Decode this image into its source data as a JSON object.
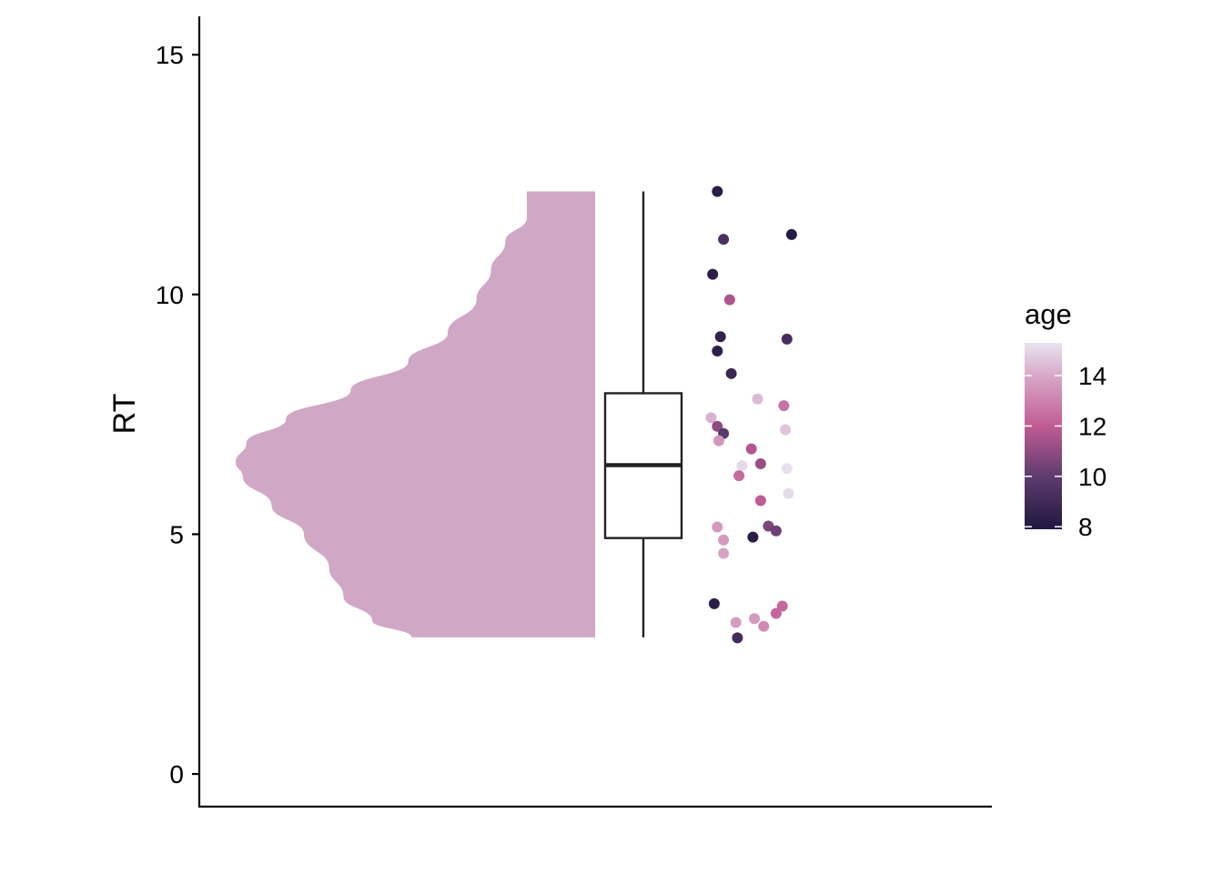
{
  "chart_data": {
    "type": "raincloud",
    "title": "",
    "xlabel": "",
    "ylabel": "RT",
    "ylim": [
      -0.7,
      15.8
    ],
    "yticks": [
      0,
      5,
      10,
      15
    ],
    "ytick_labels": [
      "0",
      "5",
      "10",
      "15"
    ],
    "grid": false,
    "violin_color": "#d0a8c5",
    "density": {
      "y": [
        2.85,
        3.2,
        3.7,
        4.3,
        5.0,
        5.6,
        6.2,
        6.5,
        6.9,
        7.4,
        8.0,
        8.6,
        9.2,
        9.9,
        10.5,
        11.1,
        11.6,
        12.15
      ],
      "width": [
        0.51,
        0.62,
        0.7,
        0.74,
        0.81,
        0.9,
        0.98,
        1.0,
        0.97,
        0.86,
        0.68,
        0.52,
        0.41,
        0.33,
        0.29,
        0.25,
        0.19,
        0.19
      ]
    },
    "boxplot": {
      "min": 2.85,
      "q1": 4.92,
      "median": 6.44,
      "q3": 7.94,
      "max": 12.15
    },
    "points": [
      {
        "jitter": 0.19,
        "rt": 12.15,
        "age": 8.2
      },
      {
        "jitter": 0.23,
        "rt": 11.15,
        "age": 9.3
      },
      {
        "jitter": 0.67,
        "rt": 11.25,
        "age": 8.1
      },
      {
        "jitter": 0.16,
        "rt": 10.42,
        "age": 8.3
      },
      {
        "jitter": 0.27,
        "rt": 9.89,
        "age": 11.6
      },
      {
        "jitter": 0.21,
        "rt": 9.12,
        "age": 8.5
      },
      {
        "jitter": 0.64,
        "rt": 9.07,
        "age": 9.2
      },
      {
        "jitter": 0.19,
        "rt": 8.82,
        "age": 8.4
      },
      {
        "jitter": 0.28,
        "rt": 8.35,
        "age": 8.8
      },
      {
        "jitter": 0.45,
        "rt": 7.82,
        "age": 14.4
      },
      {
        "jitter": 0.62,
        "rt": 7.68,
        "age": 12.6
      },
      {
        "jitter": 0.15,
        "rt": 7.43,
        "age": 14.2
      },
      {
        "jitter": 0.19,
        "rt": 7.25,
        "age": 11.0
      },
      {
        "jitter": 0.23,
        "rt": 7.1,
        "age": 9.8
      },
      {
        "jitter": 0.63,
        "rt": 7.18,
        "age": 14.6
      },
      {
        "jitter": 0.2,
        "rt": 6.95,
        "age": 13.5
      },
      {
        "jitter": 0.41,
        "rt": 6.78,
        "age": 11.7
      },
      {
        "jitter": 0.47,
        "rt": 6.47,
        "age": 11.2
      },
      {
        "jitter": 0.35,
        "rt": 6.43,
        "age": 15.1
      },
      {
        "jitter": 0.64,
        "rt": 6.37,
        "age": 15.2
      },
      {
        "jitter": 0.33,
        "rt": 6.22,
        "age": 12.4
      },
      {
        "jitter": 0.65,
        "rt": 5.85,
        "age": 15.1
      },
      {
        "jitter": 0.47,
        "rt": 5.7,
        "age": 12.0
      },
      {
        "jitter": 0.19,
        "rt": 5.15,
        "age": 13.6
      },
      {
        "jitter": 0.52,
        "rt": 5.17,
        "age": 10.6
      },
      {
        "jitter": 0.57,
        "rt": 5.07,
        "age": 10.3
      },
      {
        "jitter": 0.42,
        "rt": 4.94,
        "age": 8.2
      },
      {
        "jitter": 0.23,
        "rt": 4.88,
        "age": 13.6
      },
      {
        "jitter": 0.23,
        "rt": 4.6,
        "age": 13.9
      },
      {
        "jitter": 0.17,
        "rt": 3.55,
        "age": 8.3
      },
      {
        "jitter": 0.61,
        "rt": 3.5,
        "age": 12.3
      },
      {
        "jitter": 0.57,
        "rt": 3.35,
        "age": 12.3
      },
      {
        "jitter": 0.43,
        "rt": 3.24,
        "age": 13.6
      },
      {
        "jitter": 0.31,
        "rt": 3.16,
        "age": 13.7
      },
      {
        "jitter": 0.49,
        "rt": 3.08,
        "age": 13.2
      },
      {
        "jitter": 0.32,
        "rt": 2.84,
        "age": 9.1
      }
    ],
    "legend": {
      "title": "age",
      "position": "right",
      "range": [
        7.9,
        15.3
      ],
      "ticks": [
        8,
        10,
        12,
        14
      ],
      "tick_labels": [
        "8",
        "10",
        "12",
        "14"
      ],
      "gradient": [
        {
          "value": 8,
          "color": "#231942"
        },
        {
          "value": 10,
          "color": "#5e3c6f"
        },
        {
          "value": 12,
          "color": "#c05c94"
        },
        {
          "value": 14,
          "color": "#d8a8c8"
        },
        {
          "value": 15.3,
          "color": "#e8e4f0"
        }
      ]
    }
  }
}
